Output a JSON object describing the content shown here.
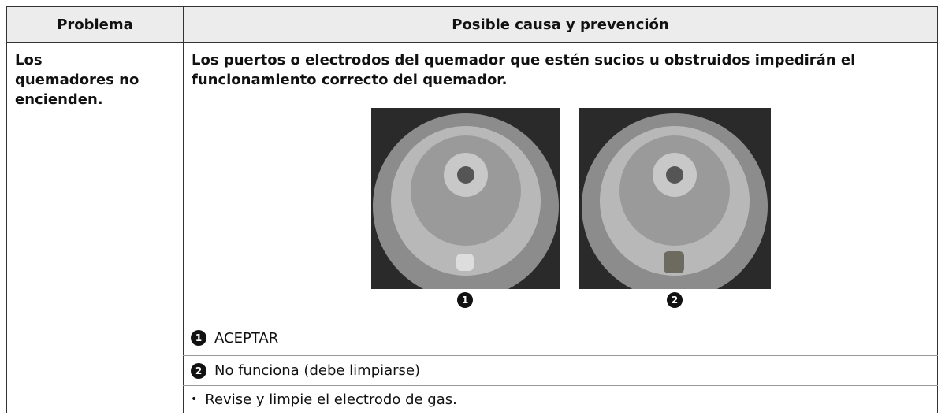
{
  "table": {
    "header": [
      "Problema",
      "Posible causa y prevención"
    ],
    "rows": [
      {
        "problem": "Los quemadores no encienden.",
        "cause": "Los puertos o electrodos del quemador que estén sucios u obstruidos impedirán el funcionamiento correcto del quemador.",
        "images": [
          {
            "badge": "1"
          },
          {
            "badge": "2"
          }
        ],
        "notes": [
          {
            "marker": "1",
            "text": "ACEPTAR"
          },
          {
            "marker": "2",
            "text": "No funciona (debe limpiarse)"
          },
          {
            "marker": "•",
            "text": "Revise y limpie el electrodo de gas."
          }
        ]
      }
    ]
  }
}
